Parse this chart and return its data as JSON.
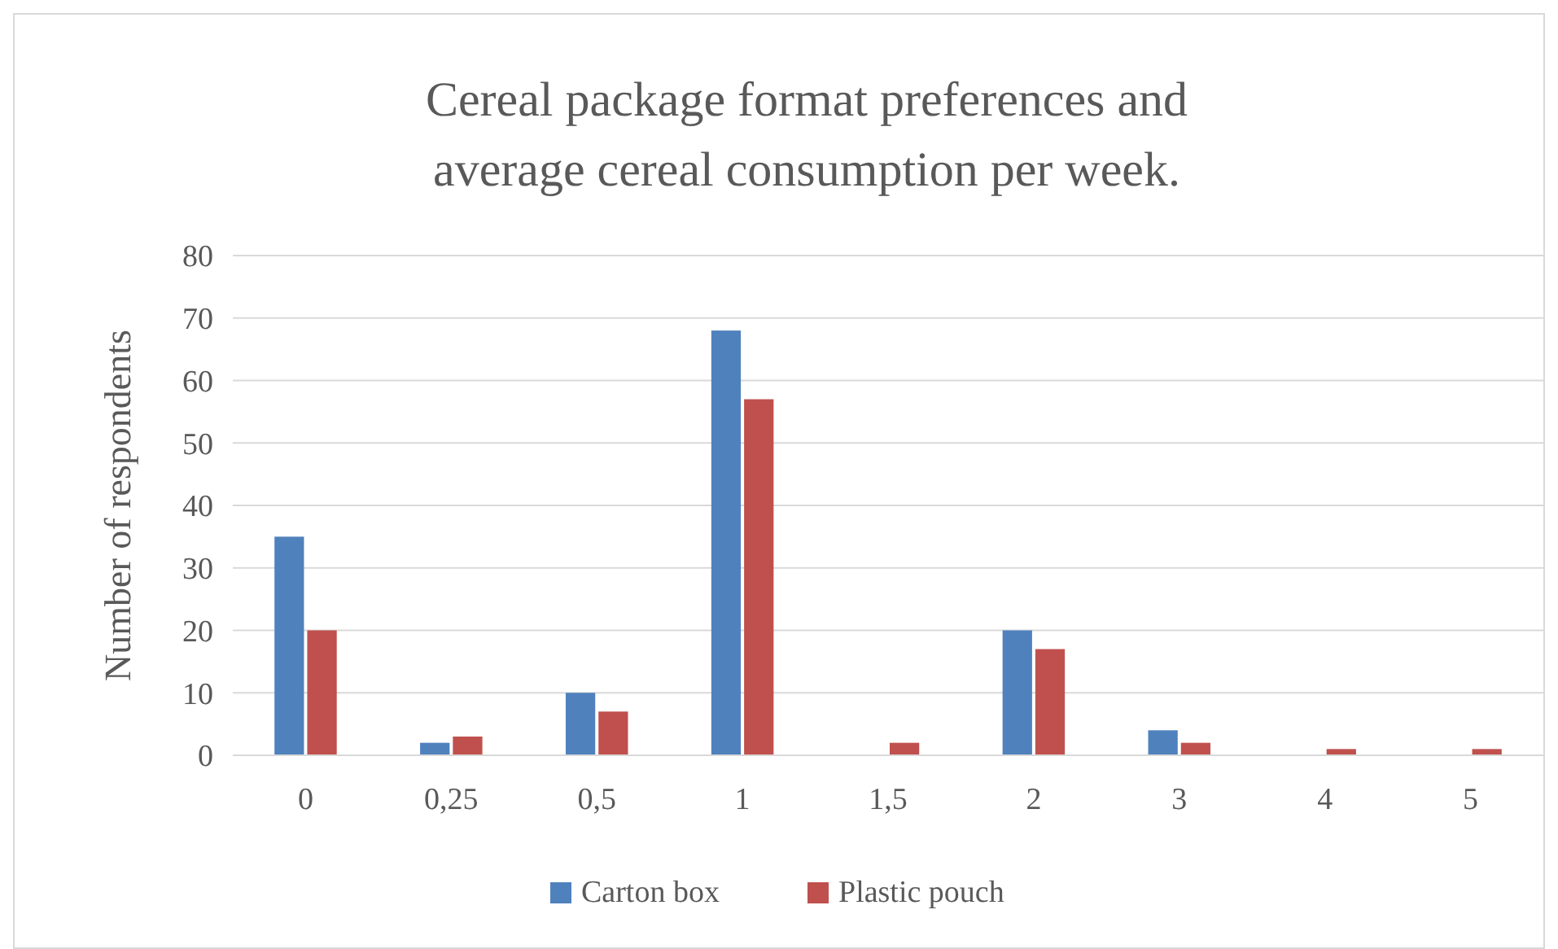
{
  "chart_data": {
    "type": "bar",
    "title": "Cereal package format preferences and average cereal consumption per week.",
    "ylabel": "Number of respondents",
    "categories": [
      "0",
      "0,25",
      "0,5",
      "1",
      "1,5",
      "2",
      "3",
      "4",
      "5"
    ],
    "series": [
      {
        "name": "Carton box",
        "color": "#4f81bd",
        "values": [
          35,
          2,
          10,
          68,
          0,
          20,
          4,
          0,
          0
        ]
      },
      {
        "name": "Plastic pouch",
        "color": "#c0504d",
        "values": [
          20,
          3,
          7,
          57,
          2,
          17,
          2,
          1,
          1
        ]
      }
    ],
    "ylim": [
      0,
      80
    ],
    "yticks": [
      0,
      10,
      20,
      30,
      40,
      50,
      60,
      70,
      80
    ],
    "grid": "y",
    "legend": "bottom"
  }
}
